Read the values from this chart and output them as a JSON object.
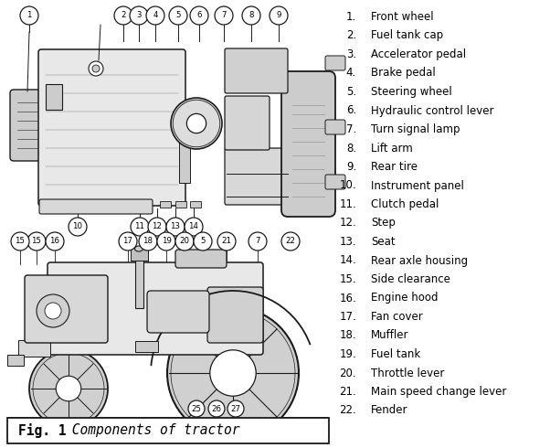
{
  "title_bold": "Fig. 1",
  "title_italic": " Components of tractor",
  "background_color": "#ffffff",
  "numbered_items": [
    [
      1,
      "Front wheel"
    ],
    [
      2,
      "Fuel tank cap"
    ],
    [
      3,
      "Accelerator pedal"
    ],
    [
      4,
      "Brake pedal"
    ],
    [
      5,
      "Steering wheel"
    ],
    [
      6,
      "Hydraulic control lever"
    ],
    [
      7,
      "Turn signal lamp"
    ],
    [
      8,
      "Lift arm"
    ],
    [
      9,
      "Rear tire"
    ],
    [
      10,
      "Instrument panel"
    ],
    [
      11,
      "Clutch pedal"
    ],
    [
      12,
      "Step"
    ],
    [
      13,
      "Seat"
    ],
    [
      14,
      "Rear axle housing"
    ],
    [
      15,
      "Side clearance"
    ],
    [
      16,
      "Engine hood"
    ],
    [
      17,
      "Fan cover"
    ],
    [
      18,
      "Muffler"
    ],
    [
      19,
      "Fuel tank"
    ],
    [
      20,
      "Throttle lever"
    ],
    [
      21,
      "Main speed change lever"
    ],
    [
      22,
      "Fender"
    ]
  ],
  "text_color": "#000000",
  "diagram_color": "#1a1a1a",
  "light_fill": "#e8e8e8",
  "mid_fill": "#cccccc",
  "dark_fill": "#aaaaaa",
  "font_size": 8.5,
  "label_font_size": 6.2,
  "title_font_size": 10.5
}
